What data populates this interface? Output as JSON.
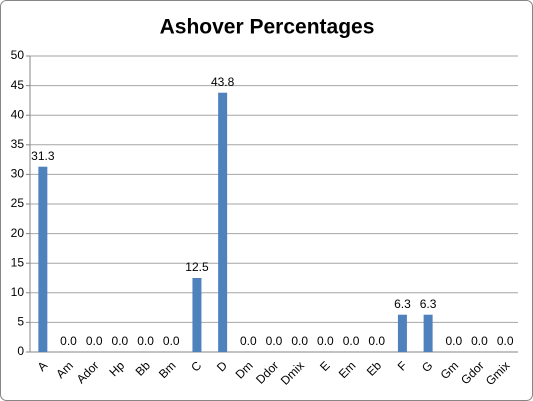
{
  "chart_data": {
    "type": "bar",
    "title": "Ashover Percentages",
    "categories": [
      "A",
      "Am",
      "Ador",
      "Hp",
      "Bb",
      "Bm",
      "C",
      "D",
      "Dm",
      "Ddor",
      "Dmix",
      "E",
      "Em",
      "Eb",
      "F",
      "G",
      "Gm",
      "Gdor",
      "Gmix"
    ],
    "values": [
      31.3,
      0,
      0,
      0,
      0,
      0,
      12.5,
      43.8,
      0,
      0,
      0,
      0,
      0,
      0,
      6.3,
      6.3,
      0,
      0,
      0
    ],
    "value_labels": [
      "31.3",
      "0.0",
      "0.0",
      "0.0",
      "0.0",
      "0.0",
      "12.5",
      "43.8",
      "0.0",
      "0.0",
      "0.0",
      "0.0",
      "0.0",
      "0.0",
      "6.3",
      "6.3",
      "0.0",
      "0.0",
      "0.0"
    ],
    "color": "#4f81bd",
    "ylim": [
      0,
      50
    ],
    "yticks": [
      0,
      5,
      10,
      15,
      20,
      25,
      30,
      35,
      40,
      45,
      50
    ],
    "grid": true
  }
}
